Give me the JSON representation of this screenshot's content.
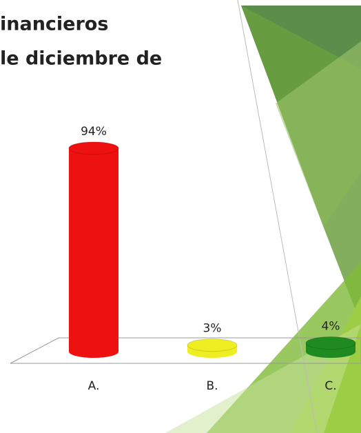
{
  "chart_data": {
    "type": "bar",
    "title_lines": [
      "inancieros",
      "le diciembre de"
    ],
    "categories": [
      "A.",
      "B.",
      "C."
    ],
    "values": [
      94,
      3,
      4
    ],
    "value_labels": [
      "94%",
      "3%",
      "4%"
    ],
    "colors": [
      "#ee1111",
      "#eeee22",
      "#1f8a1f"
    ]
  }
}
